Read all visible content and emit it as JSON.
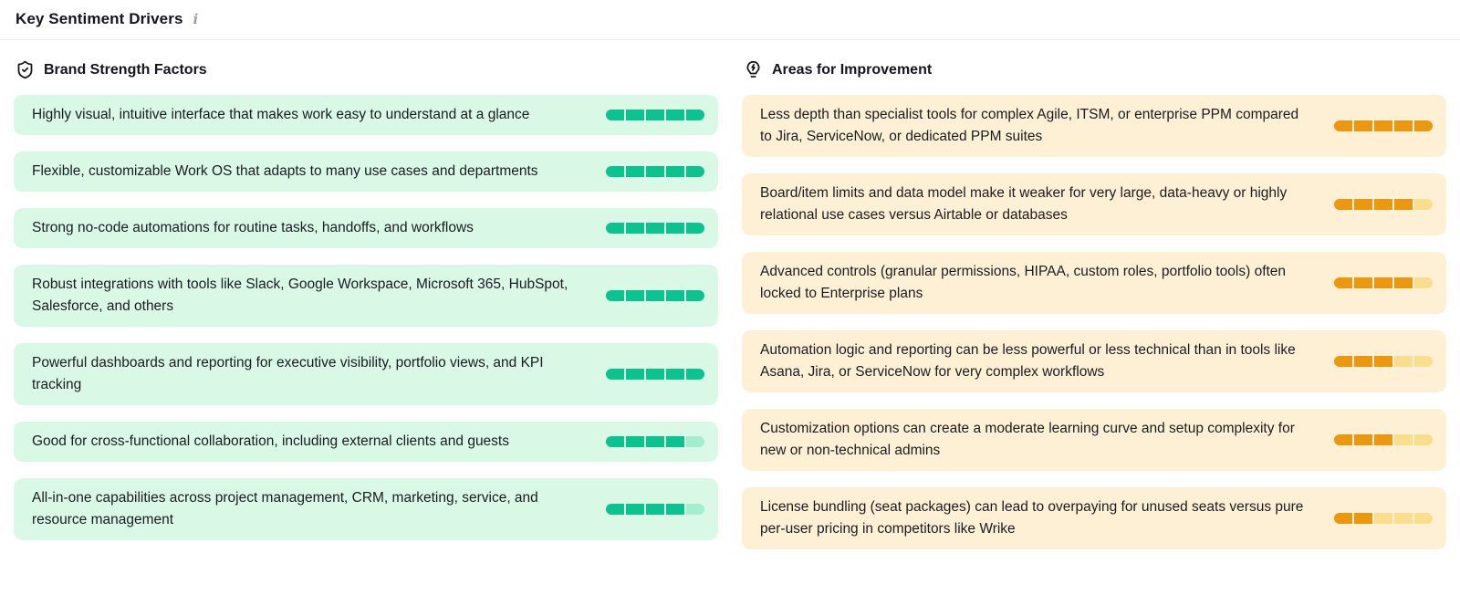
{
  "page": {
    "title": "Key Sentiment Drivers",
    "info_icon": "i"
  },
  "colors": {
    "strength_card_bg": "#d9f8e6",
    "strength_fill": "#0cc38f",
    "strength_empty": "#a5edcf",
    "improvement_card_bg": "#fdf0d4",
    "improvement_fill": "#eb9810",
    "improvement_empty": "#fadd8d"
  },
  "strengths": {
    "header": "Brand Strength Factors",
    "icon": "shield-check-icon",
    "items": [
      {
        "text": "Highly visual, intuitive interface that makes work easy to understand at a glance",
        "filled": 5,
        "total": 5
      },
      {
        "text": "Flexible, customizable Work OS that adapts to many use cases and departments",
        "filled": 5,
        "total": 5
      },
      {
        "text": "Strong no-code automations for routine tasks, handoffs, and workflows",
        "filled": 5,
        "total": 5
      },
      {
        "text": "Robust integrations with tools like Slack, Google Workspace, Microsoft 365, HubSpot, Salesforce, and others",
        "filled": 5,
        "total": 5
      },
      {
        "text": "Powerful dashboards and reporting for executive visibility, portfolio views, and KPI tracking",
        "filled": 5,
        "total": 5
      },
      {
        "text": "Good for cross-functional collaboration, including external clients and guests",
        "filled": 4,
        "total": 5
      },
      {
        "text": "All-in-one capabilities across project management, CRM, marketing, service, and resource management",
        "filled": 4,
        "total": 5
      }
    ]
  },
  "improvements": {
    "header": "Areas for Improvement",
    "icon": "lightbulb-zap-icon",
    "items": [
      {
        "text": "Less depth than specialist tools for complex Agile, ITSM, or enterprise PPM compared to Jira, ServiceNow, or dedicated PPM suites",
        "filled": 5,
        "total": 5
      },
      {
        "text": "Board/item limits and data model make it weaker for very large, data-heavy or highly relational use cases versus Airtable or databases",
        "filled": 4,
        "total": 5
      },
      {
        "text": "Advanced controls (granular permissions, HIPAA, custom roles, portfolio tools) often locked to Enterprise plans",
        "filled": 4,
        "total": 5
      },
      {
        "text": "Automation logic and reporting can be less powerful or less technical than in tools like Asana, Jira, or ServiceNow for very complex workflows",
        "filled": 3,
        "total": 5
      },
      {
        "text": "Customization options can create a moderate learning curve and setup complexity for new or non-technical admins",
        "filled": 3,
        "total": 5
      },
      {
        "text": "License bundling (seat packages) can lead to overpaying for unused seats versus pure per-user pricing in competitors like Wrike",
        "filled": 2,
        "total": 5
      }
    ]
  }
}
